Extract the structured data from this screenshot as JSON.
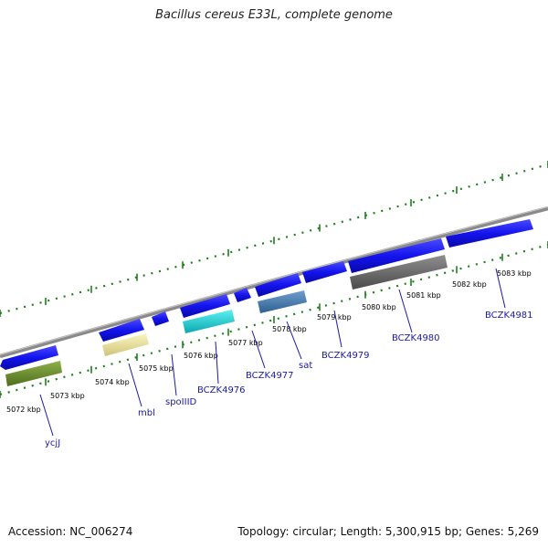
{
  "title": "Bacillus cereus E33L, complete genome",
  "accession": "Accession: NC_006274",
  "topology": "Topology: circular; Length: 5,300,915 bp; Genes: 5,269",
  "colors": {
    "backbone": "#8a8a8a",
    "tick": "#1e7f1e",
    "cds": "#1515e6",
    "label": "#1a1aa6"
  },
  "kbp_labels": [
    "5072 kbp",
    "5073 kbp",
    "5074 kbp",
    "5075 kbp",
    "5076 kbp",
    "5077 kbp",
    "5078 kbp",
    "5079 kbp",
    "5080 kbp",
    "5081 kbp",
    "5082 kbp",
    "5083 kbp"
  ],
  "gene_labels": [
    "ycjJ",
    "mbl",
    "spoIIID",
    "BCZK4976",
    "BCZK4977",
    "sat",
    "BCZK4979",
    "BCZK4980",
    "BCZK4981"
  ]
}
